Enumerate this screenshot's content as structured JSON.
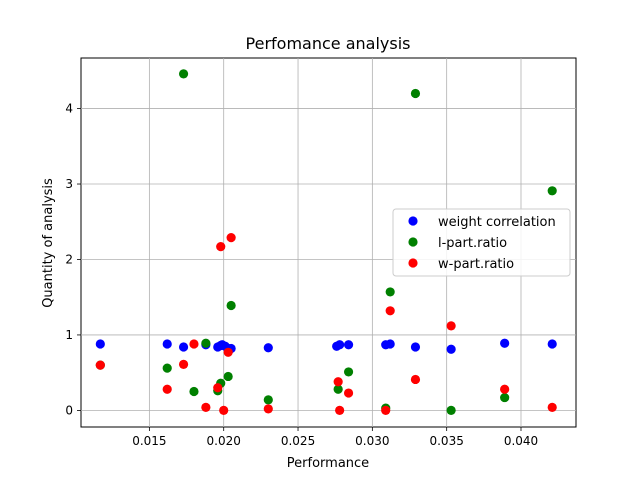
{
  "chart_data": {
    "type": "scatter",
    "title": "Perfomance analysis",
    "xlabel": "Performance",
    "ylabel": "Quantity of analysis",
    "xlim": [
      0.0104,
      0.0437
    ],
    "ylim": [
      -0.22,
      4.67
    ],
    "xticks": [
      0.015,
      0.02,
      0.025,
      0.03,
      0.035,
      0.04
    ],
    "xtick_labels": [
      "0.015",
      "0.020",
      "0.025",
      "0.030",
      "0.035",
      "0.040"
    ],
    "yticks": [
      0,
      1,
      2,
      3,
      4
    ],
    "ytick_labels": [
      "0",
      "1",
      "2",
      "3",
      "4"
    ],
    "grid": true,
    "legend_position": "center-right",
    "series": [
      {
        "name": "weight correlation",
        "color": "#0000ff",
        "points": [
          [
            0.0117,
            0.88
          ],
          [
            0.0162,
            0.88
          ],
          [
            0.0173,
            0.84
          ],
          [
            0.0188,
            0.87
          ],
          [
            0.0196,
            0.84
          ],
          [
            0.0198,
            0.86
          ],
          [
            0.0199,
            0.87
          ],
          [
            0.0201,
            0.85
          ],
          [
            0.0203,
            0.82
          ],
          [
            0.0205,
            0.82
          ],
          [
            0.023,
            0.83
          ],
          [
            0.0276,
            0.85
          ],
          [
            0.0278,
            0.87
          ],
          [
            0.0284,
            0.87
          ],
          [
            0.0309,
            0.87
          ],
          [
            0.0312,
            0.88
          ],
          [
            0.0329,
            0.84
          ],
          [
            0.0353,
            0.81
          ],
          [
            0.0389,
            0.89
          ],
          [
            0.0421,
            0.88
          ]
        ]
      },
      {
        "name": "l-part.ratio",
        "color": "#008000",
        "points": [
          [
            0.0117,
            0.6
          ],
          [
            0.0162,
            0.56
          ],
          [
            0.0173,
            4.46
          ],
          [
            0.018,
            0.25
          ],
          [
            0.0188,
            0.89
          ],
          [
            0.0196,
            0.26
          ],
          [
            0.0198,
            0.36
          ],
          [
            0.0203,
            0.45
          ],
          [
            0.0205,
            1.39
          ],
          [
            0.023,
            0.14
          ],
          [
            0.0277,
            0.28
          ],
          [
            0.0284,
            0.51
          ],
          [
            0.0309,
            0.03
          ],
          [
            0.0312,
            1.57
          ],
          [
            0.0329,
            4.2
          ],
          [
            0.0353,
            0.0
          ],
          [
            0.0389,
            0.17
          ],
          [
            0.0421,
            2.91
          ]
        ]
      },
      {
        "name": "w-part.ratio",
        "color": "#ff0000",
        "points": [
          [
            0.0117,
            0.6
          ],
          [
            0.0162,
            0.28
          ],
          [
            0.0173,
            0.61
          ],
          [
            0.018,
            0.88
          ],
          [
            0.0188,
            0.04
          ],
          [
            0.0196,
            0.3
          ],
          [
            0.0198,
            2.17
          ],
          [
            0.02,
            0.0
          ],
          [
            0.0203,
            0.77
          ],
          [
            0.0205,
            2.29
          ],
          [
            0.023,
            0.02
          ],
          [
            0.0277,
            0.38
          ],
          [
            0.0278,
            0.0
          ],
          [
            0.0284,
            0.23
          ],
          [
            0.0309,
            0.0
          ],
          [
            0.0312,
            1.32
          ],
          [
            0.0329,
            0.41
          ],
          [
            0.0353,
            1.12
          ],
          [
            0.0389,
            0.28
          ],
          [
            0.0421,
            0.04
          ]
        ]
      }
    ]
  }
}
